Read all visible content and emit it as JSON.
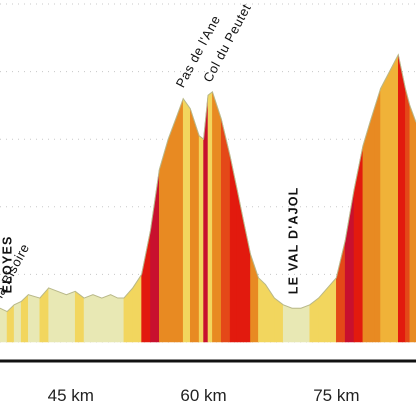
{
  "chart_data": {
    "type": "area",
    "title": "",
    "xlabel": "",
    "ylabel": "",
    "x_unit": "km",
    "xlim": [
      37,
      84
    ],
    "ylim": [
      0,
      100
    ],
    "grid": true,
    "x_ticks": [
      {
        "value": 45,
        "label": "45 km"
      },
      {
        "value": 60,
        "label": "60 km"
      },
      {
        "value": 75,
        "label": "75 km"
      }
    ],
    "profile": {
      "x": [
        37,
        37.8,
        38.6,
        39.4,
        40.2,
        41.5,
        42.5,
        43.5,
        44.5,
        45.5,
        46.5,
        47.5,
        48.5,
        49.5,
        50.3,
        51,
        52,
        53,
        54,
        55,
        56,
        57,
        57.7,
        58.5,
        59.5,
        60,
        60.5,
        61,
        62,
        63,
        63.8,
        64.5,
        65.3,
        66.2,
        67,
        68,
        69,
        70,
        71,
        72,
        73,
        74,
        75,
        76,
        77,
        78,
        78.8,
        79.4,
        80,
        81,
        82,
        82.8,
        83.3,
        84
      ],
      "y": [
        10,
        9,
        11,
        12,
        14,
        13,
        16,
        15,
        14,
        15,
        13,
        14,
        13,
        14,
        13,
        13,
        16,
        20,
        33,
        51,
        60,
        67,
        72,
        69,
        61,
        60,
        73,
        74,
        66,
        55,
        45,
        36,
        26,
        19,
        17,
        13,
        11,
        10,
        10,
        11,
        13,
        16,
        19,
        30,
        45,
        58,
        65,
        70,
        75,
        80,
        85,
        75,
        70,
        65
      ],
      "band_colors": [
        "#e8e8b4",
        "#f2d65e",
        "#f0b238",
        "#e88a22",
        "#e44818",
        "#e21a0e",
        "#c8102e"
      ]
    },
    "annotations": [
      {
        "label": "la Bisoire",
        "x": 37.2
      },
      {
        "label": "ELOYES",
        "x": 38.3
      },
      {
        "label": "Pas de l'Ane",
        "x": 57.7
      },
      {
        "label": "Col du Peutet",
        "x": 60.8
      },
      {
        "label": "LE VAL D'AJOL",
        "x": 70.6
      }
    ]
  }
}
